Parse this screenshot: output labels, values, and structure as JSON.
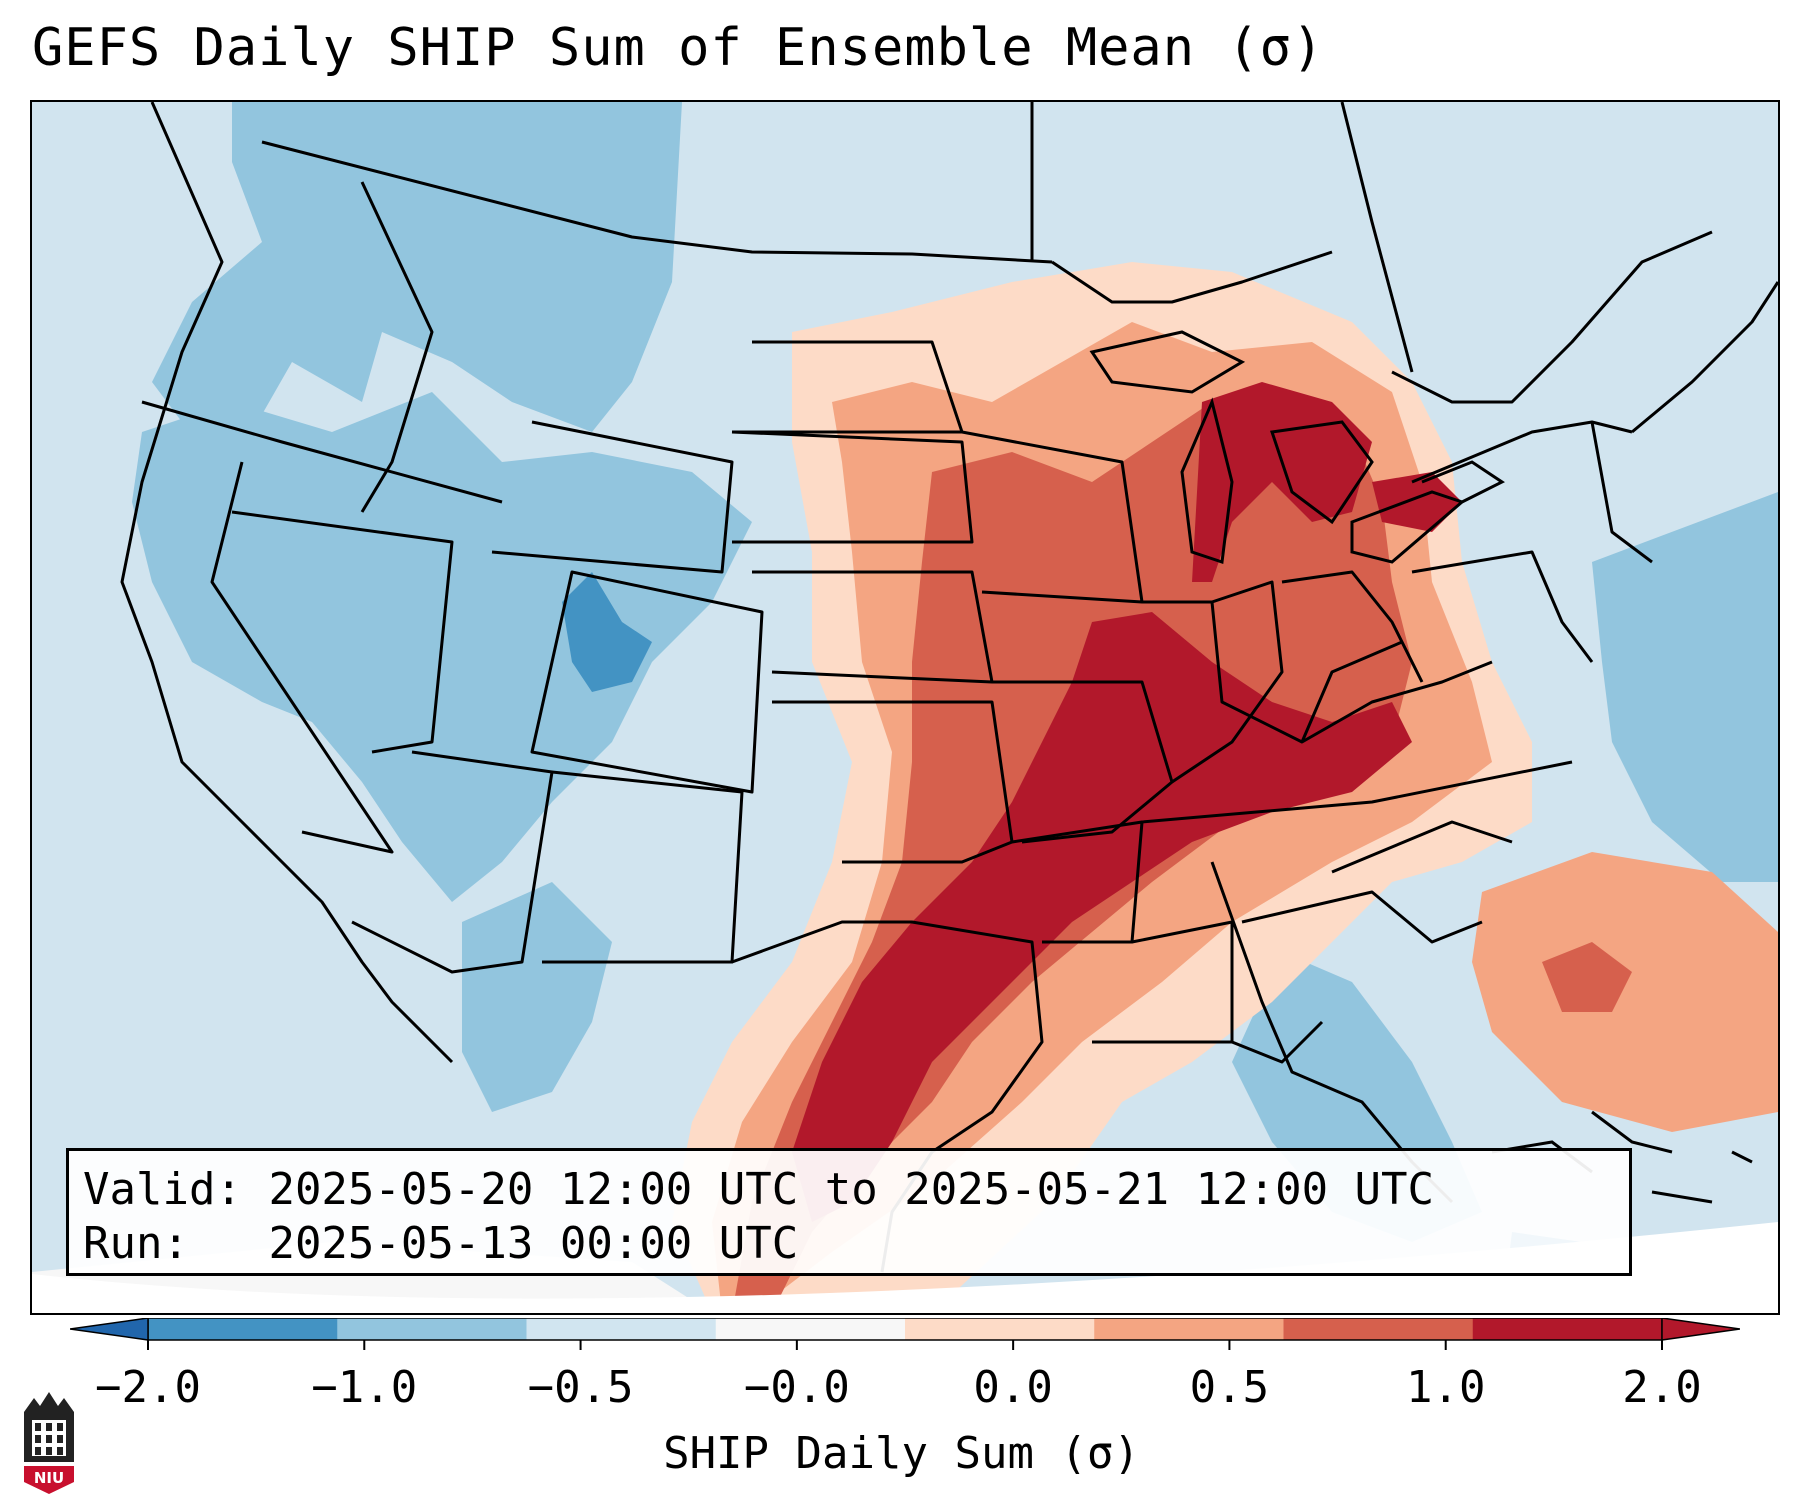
{
  "title": "GEFS Daily SHIP Sum of Ensemble Mean (σ)",
  "info": {
    "valid_label": "Valid:",
    "valid_value": "2025-05-20 12:00 UTC to 2025-05-21 12:00 UTC",
    "run_label": "Run:",
    "run_value": "2025-05-13 00:00 UTC"
  },
  "colorbar": {
    "label": "SHIP Daily Sum (σ)",
    "ticks": [
      "−2.0",
      "−1.0",
      "−0.5",
      "−0.0",
      "0.0",
      "0.5",
      "1.0",
      "2.0"
    ],
    "colors": [
      "#4393c3",
      "#92c5de",
      "#d1e5f0",
      "#f7f7f7",
      "#fddbc7",
      "#f4a582",
      "#d6604d",
      "#b2182b"
    ],
    "extend": "both"
  },
  "logo": {
    "text": "NIU",
    "icon": "university-tower-icon"
  }
}
